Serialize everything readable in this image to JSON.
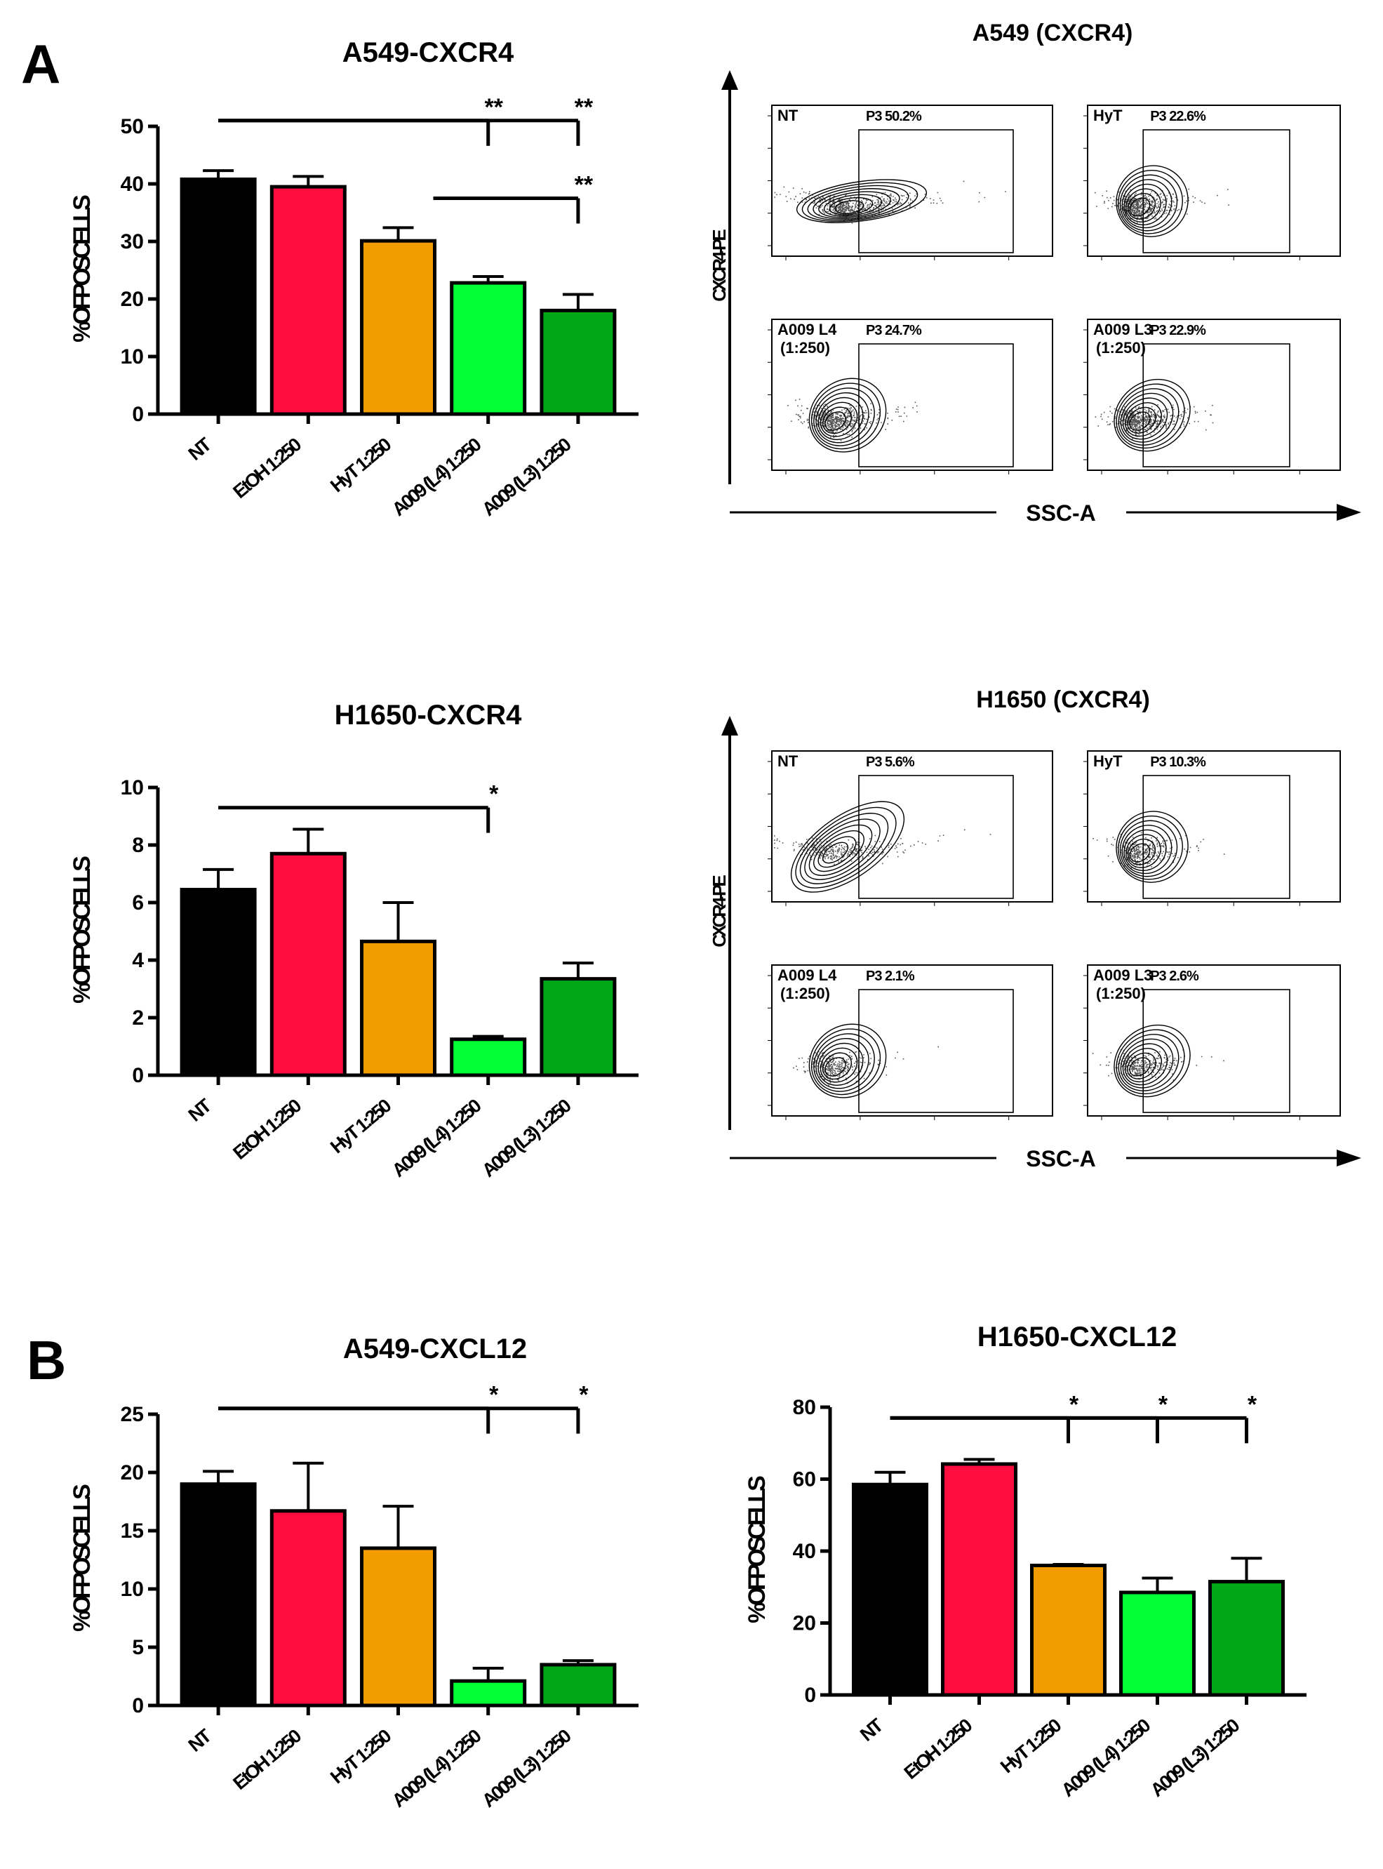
{
  "panels": {
    "A": "A",
    "B": "B"
  },
  "colors": {
    "NT": "#000000",
    "EtOH": "#ff0d3f",
    "HyT": "#f39c00",
    "A009_L4": "#00ff33",
    "A009_L3": "#00a818"
  },
  "chart_data": [
    {
      "id": "a549_cxcr4",
      "type": "bar",
      "title": "A549-CXCR4",
      "ylabel": "%OFPOSCELLS",
      "xlabel": "",
      "ylim": [
        0,
        50
      ],
      "yticks": [
        "0",
        "10",
        "20",
        "30",
        "40",
        "50"
      ],
      "categories": [
        "NT",
        "EtOH 1:250",
        "HyT 1:250",
        "A009 (L4) 1:250",
        "A009 (L3) 1:250"
      ],
      "values": [
        40.8,
        39.5,
        30.1,
        22.8,
        18.0
      ],
      "errors": [
        1.5,
        1.8,
        2.3,
        1.1,
        2.8
      ],
      "significance": [
        {
          "from": 0,
          "to": 3,
          "label": "**"
        },
        {
          "from": 0,
          "to": 4,
          "label": "**"
        },
        {
          "from": 2,
          "to": 4,
          "label": "**"
        }
      ]
    },
    {
      "id": "h1650_cxcr4",
      "type": "bar",
      "title": "H1650-CXCR4",
      "ylabel": "%OFPOSCELLS",
      "xlabel": "",
      "ylim": [
        0,
        10
      ],
      "yticks": [
        "0",
        "2",
        "4",
        "6",
        "8",
        "10"
      ],
      "categories": [
        "NT",
        "EtOH 1:250",
        "HyT 1:250",
        "A009 (L4) 1:250",
        "A009 (L3) 1:250"
      ],
      "values": [
        6.45,
        7.7,
        4.65,
        1.25,
        3.35
      ],
      "errors": [
        0.7,
        0.85,
        1.35,
        0.1,
        0.55
      ],
      "significance": [
        {
          "from": 0,
          "to": 3,
          "label": "*"
        }
      ]
    },
    {
      "id": "a549_cxcl12",
      "type": "bar",
      "title": "A549-CXCL12",
      "ylabel": "%OFPOSCELLS",
      "xlabel": "",
      "ylim": [
        0,
        25
      ],
      "yticks": [
        "0",
        "5",
        "10",
        "15",
        "20",
        "25"
      ],
      "categories": [
        "NT",
        "EtOH 1:250",
        "HyT 1:250",
        "A009 (L4) 1:250",
        "A009 (L3) 1:250"
      ],
      "values": [
        19.0,
        16.7,
        13.5,
        2.1,
        3.5
      ],
      "errors": [
        1.1,
        4.1,
        3.6,
        1.1,
        0.35
      ],
      "significance": [
        {
          "from": 0,
          "to": 3,
          "label": "*"
        },
        {
          "from": 0,
          "to": 4,
          "label": "*"
        }
      ]
    },
    {
      "id": "h1650_cxcl12",
      "type": "bar",
      "title": "H1650-CXCL12",
      "ylabel": "%OFPOSCELLS",
      "xlabel": "",
      "ylim": [
        0,
        80
      ],
      "yticks": [
        "0",
        "20",
        "40",
        "60",
        "80"
      ],
      "categories": [
        "NT",
        "EtOH 1:250",
        "HyT 1:250",
        "A009 (L4) 1:250",
        "A009 (L3) 1:250"
      ],
      "values": [
        58.5,
        64.2,
        36.0,
        28.5,
        31.5
      ],
      "errors": [
        3.4,
        1.3,
        0.3,
        4.0,
        6.5
      ],
      "significance": [
        {
          "from": 0,
          "to": 2,
          "label": "*"
        },
        {
          "from": 0,
          "to": 3,
          "label": "*"
        },
        {
          "from": 0,
          "to": 4,
          "label": "*"
        }
      ]
    }
  ],
  "flow_panels": [
    {
      "id": "a549_flow",
      "title": "A549 (CXCR4)",
      "yaxis": "CXCR4-PE",
      "xaxis": "SSC-A",
      "plots": [
        {
          "label": "NT",
          "sublabel": "",
          "gate": "P3 50.2%"
        },
        {
          "label": "HyT",
          "sublabel": "",
          "gate": "P3 22.6%"
        },
        {
          "label": "A009 L4",
          "sublabel": "(1:250)",
          "gate": "P3 24.7%"
        },
        {
          "label": "A009 L3",
          "sublabel": "(1:250)",
          "gate": "P3 22.9%"
        }
      ]
    },
    {
      "id": "h1650_flow",
      "title": "H1650 (CXCR4)",
      "yaxis": "CXCR4-PE",
      "xaxis": "SSC-A",
      "plots": [
        {
          "label": "NT",
          "sublabel": "",
          "gate": "P3 5.6%"
        },
        {
          "label": "HyT",
          "sublabel": "",
          "gate": "P3 10.3%"
        },
        {
          "label": "A009 L4",
          "sublabel": "(1:250)",
          "gate": "P3 2.1%"
        },
        {
          "label": "A009 L3",
          "sublabel": "(1:250)",
          "gate": "P3 2.6%"
        }
      ]
    }
  ]
}
